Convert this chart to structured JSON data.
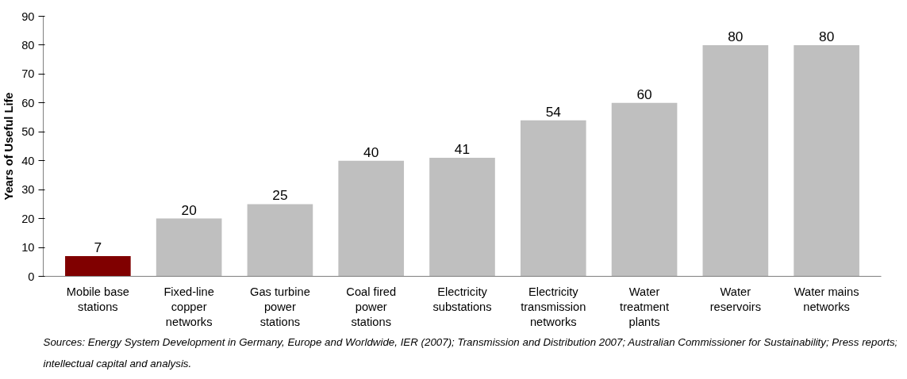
{
  "chart_data": {
    "type": "bar",
    "categories": [
      "Mobile base stations",
      "Fixed-line copper networks",
      "Gas turbine power stations",
      "Coal fired power stations",
      "Electricity substations",
      "Electricity transmission networks",
      "Water treatment plants",
      "Water reservoirs",
      "Water mains networks"
    ],
    "values": [
      7,
      20,
      25,
      40,
      41,
      54,
      60,
      80,
      80
    ],
    "colors": [
      "#800000",
      "#bfbfbf",
      "#bfbfbf",
      "#bfbfbf",
      "#bfbfbf",
      "#bfbfbf",
      "#bfbfbf",
      "#bfbfbf",
      "#bfbfbf"
    ],
    "ylabel": "Years of Useful Life",
    "ylim": [
      0,
      90
    ],
    "yticks": [
      0,
      10,
      20,
      30,
      40,
      50,
      60,
      70,
      80,
      90
    ],
    "grid": false,
    "data_labels": true,
    "annotations": [
      "Sources: Energy System Development in Germany, Europe and Worldwide, IER (2007); Transmission and Distribution 2007; Australian Commissioner for Sustainability; Press reports; intellectual capital and analysis."
    ]
  }
}
